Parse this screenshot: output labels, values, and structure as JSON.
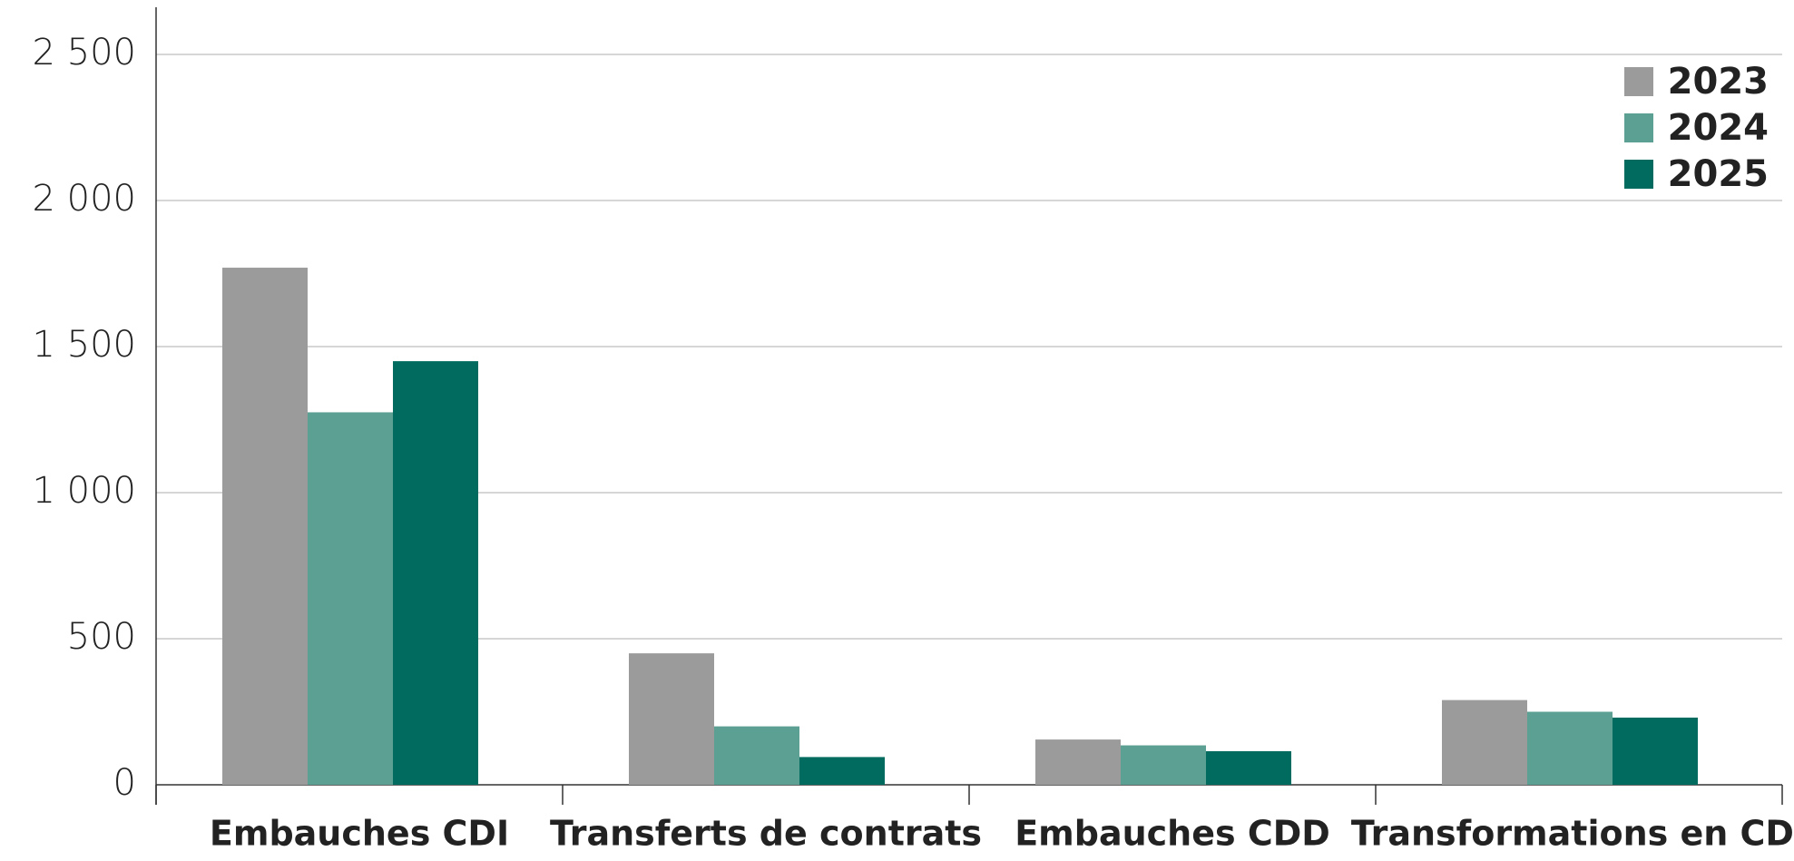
{
  "chart_data": {
    "type": "bar",
    "categories": [
      "Embauches CDI",
      "Transferts de contrats",
      "Embauches CDD",
      "Transformations en CDI"
    ],
    "series": [
      {
        "name": "2023",
        "color": "#9b9b9b",
        "values": [
          1770,
          450,
          155,
          290
        ]
      },
      {
        "name": "2024",
        "color": "#5ba092",
        "values": [
          1275,
          200,
          135,
          250
        ]
      },
      {
        "name": "2025",
        "color": "#006b5e",
        "values": [
          1450,
          95,
          115,
          230
        ]
      }
    ],
    "ylim": [
      0,
      2500
    ],
    "yticks": [
      0,
      500,
      {
        "value": 1000,
        "label": "1 000"
      },
      {
        "value": 1500,
        "label": "1 500"
      },
      {
        "value": 2000,
        "label": "2 000"
      },
      {
        "value": 2500,
        "label": "2 500"
      }
    ],
    "grid": true,
    "legend": "top-right"
  }
}
